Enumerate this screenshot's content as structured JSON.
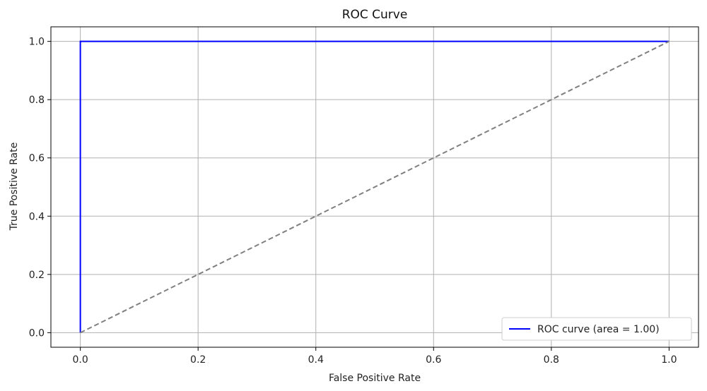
{
  "chart_data": {
    "type": "line",
    "title": "ROC Curve",
    "xlabel": "False Positive Rate",
    "ylabel": "True Positive Rate",
    "xlim": [
      -0.05,
      1.05
    ],
    "ylim": [
      -0.05,
      1.05
    ],
    "xticks": [
      "0.0",
      "0.2",
      "0.4",
      "0.6",
      "0.8",
      "1.0"
    ],
    "yticks": [
      "0.0",
      "0.2",
      "0.4",
      "0.6",
      "0.8",
      "1.0"
    ],
    "grid": true,
    "legend_position": "lower-right",
    "series": [
      {
        "name": "ROC curve (area = 1.00)",
        "color": "#0000ff",
        "style": "solid",
        "x": [
          0.0,
          0.0,
          1.0
        ],
        "y": [
          0.0,
          1.0,
          1.0
        ]
      },
      {
        "color": "#808080",
        "style": "dashed",
        "x": [
          0.0,
          1.0
        ],
        "y": [
          0.0,
          1.0
        ]
      }
    ]
  }
}
